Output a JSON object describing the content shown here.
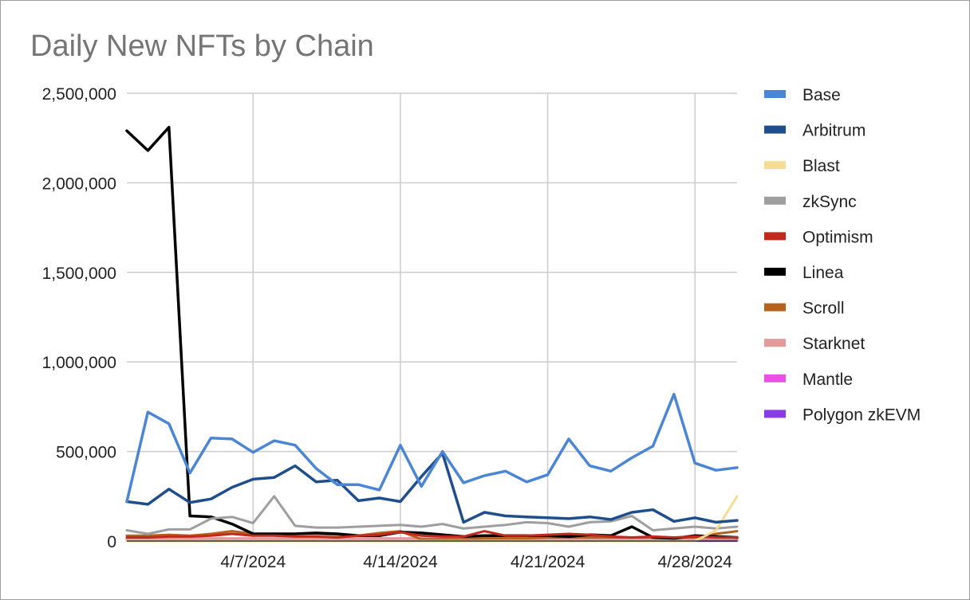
{
  "chart_data": {
    "type": "line",
    "title": "Daily New NFTs by Chain",
    "xlabel": "",
    "ylabel": "",
    "x": [
      "4/1/2024",
      "4/2/2024",
      "4/3/2024",
      "4/4/2024",
      "4/5/2024",
      "4/6/2024",
      "4/7/2024",
      "4/8/2024",
      "4/9/2024",
      "4/10/2024",
      "4/11/2024",
      "4/12/2024",
      "4/13/2024",
      "4/14/2024",
      "4/15/2024",
      "4/16/2024",
      "4/17/2024",
      "4/18/2024",
      "4/19/2024",
      "4/20/2024",
      "4/21/2024",
      "4/22/2024",
      "4/23/2024",
      "4/24/2024",
      "4/25/2024",
      "4/26/2024",
      "4/27/2024",
      "4/28/2024",
      "4/29/2024",
      "4/30/2024"
    ],
    "x_ticks": [
      "4/7/2024",
      "4/14/2024",
      "4/21/2024",
      "4/28/2024"
    ],
    "y_ticks": [
      "0",
      "500,000",
      "1,000,000",
      "1,500,000",
      "2,000,000",
      "2,500,000"
    ],
    "y_tick_values": [
      0,
      500000,
      1000000,
      1500000,
      2000000,
      2500000
    ],
    "ylim": [
      0,
      2500000
    ],
    "grid": true,
    "legend_position": "right",
    "series": [
      {
        "name": "Base",
        "color": "#4a86d4",
        "values": [
          220000,
          720000,
          655000,
          380000,
          575000,
          570000,
          495000,
          560000,
          535000,
          405000,
          315000,
          315000,
          285000,
          535000,
          305000,
          500000,
          325000,
          365000,
          390000,
          330000,
          370000,
          570000,
          420000,
          390000,
          465000,
          530000,
          820000,
          435000,
          395000,
          410000
        ]
      },
      {
        "name": "Arbitrum",
        "color": "#1f4e8c",
        "values": [
          220000,
          205000,
          290000,
          215000,
          235000,
          300000,
          345000,
          355000,
          420000,
          330000,
          340000,
          225000,
          240000,
          220000,
          360000,
          490000,
          105000,
          160000,
          140000,
          135000,
          130000,
          125000,
          135000,
          120000,
          160000,
          175000,
          110000,
          130000,
          105000,
          115000
        ]
      },
      {
        "name": "Blast",
        "color": "#f6dc93",
        "values": [
          0,
          0,
          0,
          0,
          0,
          0,
          0,
          0,
          0,
          0,
          0,
          0,
          0,
          0,
          0,
          0,
          0,
          0,
          0,
          0,
          0,
          0,
          0,
          0,
          0,
          0,
          0,
          0,
          60000,
          250000
        ]
      },
      {
        "name": "zkSync",
        "color": "#9e9e9e",
        "values": [
          60000,
          40000,
          65000,
          65000,
          125000,
          135000,
          100000,
          250000,
          85000,
          75000,
          75000,
          80000,
          85000,
          90000,
          80000,
          95000,
          70000,
          80000,
          90000,
          105000,
          100000,
          80000,
          105000,
          110000,
          140000,
          60000,
          70000,
          80000,
          70000,
          80000
        ]
      },
      {
        "name": "Optimism",
        "color": "#c0291c",
        "values": [
          20000,
          20000,
          25000,
          25000,
          30000,
          40000,
          30000,
          30000,
          25000,
          25000,
          20000,
          30000,
          35000,
          50000,
          30000,
          25000,
          25000,
          55000,
          30000,
          30000,
          35000,
          40000,
          35000,
          25000,
          20000,
          25000,
          20000,
          25000,
          20000,
          20000
        ]
      },
      {
        "name": "Linea",
        "color": "#000000",
        "values": [
          2290000,
          2180000,
          2310000,
          140000,
          135000,
          95000,
          40000,
          40000,
          40000,
          45000,
          40000,
          30000,
          30000,
          50000,
          45000,
          35000,
          25000,
          30000,
          30000,
          30000,
          30000,
          25000,
          35000,
          30000,
          80000,
          20000,
          15000,
          30000,
          25000,
          20000
        ]
      },
      {
        "name": "Scroll",
        "color": "#b5621f",
        "values": [
          30000,
          30000,
          35000,
          30000,
          40000,
          55000,
          40000,
          40000,
          40000,
          40000,
          35000,
          30000,
          45000,
          55000,
          10000,
          10000,
          10000,
          15000,
          15000,
          15000,
          20000,
          20000,
          20000,
          20000,
          20000,
          20000,
          20000,
          20000,
          40000,
          55000
        ]
      },
      {
        "name": "Starknet",
        "color": "#e39a9a",
        "values": [
          15000,
          15000,
          15000,
          15000,
          15000,
          15000,
          15000,
          15000,
          15000,
          15000,
          15000,
          15000,
          15000,
          15000,
          15000,
          15000,
          15000,
          15000,
          15000,
          15000,
          15000,
          15000,
          15000,
          15000,
          15000,
          15000,
          15000,
          15000,
          15000,
          15000
        ]
      },
      {
        "name": "Mantle",
        "color": "#ea4fe6",
        "values": [
          5000,
          5000,
          5000,
          5000,
          5000,
          5000,
          5000,
          5000,
          5000,
          5000,
          5000,
          5000,
          5000,
          5000,
          5000,
          5000,
          5000,
          5000,
          5000,
          5000,
          5000,
          5000,
          5000,
          5000,
          5000,
          5000,
          5000,
          5000,
          5000,
          5000
        ]
      },
      {
        "name": "Polygon zkEVM",
        "color": "#8a3be3",
        "values": [
          2000,
          2000,
          2000,
          2000,
          2000,
          2000,
          2000,
          2000,
          2000,
          2000,
          2000,
          2000,
          2000,
          2000,
          2000,
          2000,
          2000,
          2000,
          2000,
          2000,
          2000,
          2000,
          2000,
          2000,
          2000,
          2000,
          2000,
          2000,
          2000,
          2000
        ]
      }
    ]
  }
}
